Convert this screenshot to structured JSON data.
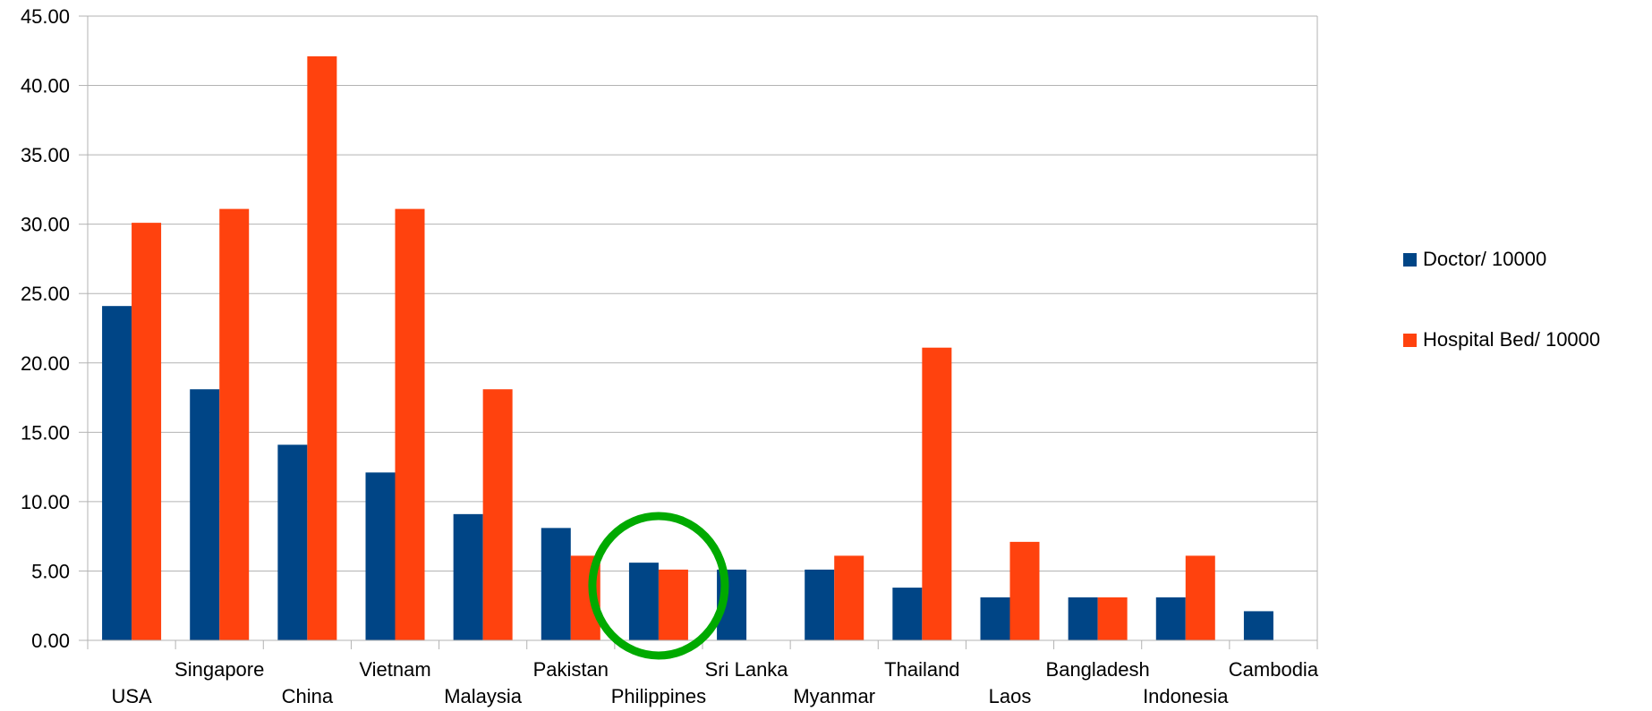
{
  "chart_data": {
    "type": "bar",
    "categories": [
      "USA",
      "Singapore",
      "China",
      "Vietnam",
      "Malaysia",
      "Pakistan",
      "Philippines",
      "Sri Lanka",
      "Myanmar",
      "Thailand",
      "Laos",
      "Bangladesh",
      "Indonesia",
      "Cambodia"
    ],
    "series": [
      {
        "name": "Doctor/ 10000",
        "color": "#004586",
        "values": [
          24.1,
          18.1,
          14.1,
          12.1,
          9.1,
          8.1,
          5.6,
          5.1,
          5.1,
          3.8,
          3.1,
          3.1,
          3.1,
          2.1
        ]
      },
      {
        "name": "Hospital Bed/ 10000",
        "color": "#ff420e",
        "values": [
          30.1,
          31.1,
          42.1,
          31.1,
          18.1,
          6.1,
          5.1,
          0,
          6.1,
          21.1,
          7.1,
          3.1,
          6.1,
          0
        ]
      }
    ],
    "ylim": [
      0,
      45
    ],
    "yticks": [
      "0.00",
      "5.00",
      "10.00",
      "15.00",
      "20.00",
      "25.00",
      "30.00",
      "35.00",
      "40.00",
      "45.00"
    ],
    "grid": true,
    "legend_position": "right",
    "annotation": {
      "shape": "circle",
      "color": "#00aa00",
      "category": "Philippines"
    }
  }
}
